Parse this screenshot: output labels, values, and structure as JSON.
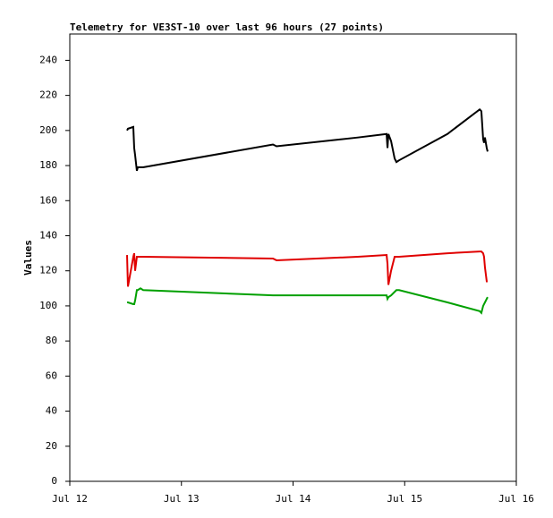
{
  "chart_data": {
    "type": "line",
    "title": "Telemetry for VE3ST-10 over last 96 hours (27 points)",
    "y_label": "Values",
    "x": [
      12.513,
      12.521,
      12.569,
      12.577,
      12.585,
      12.601,
      12.609,
      12.633,
      12.657,
      13.82,
      13.852,
      14.58,
      14.838,
      14.846,
      14.854,
      14.878,
      14.91,
      14.926,
      14.95,
      15.383,
      15.672,
      15.687,
      15.703,
      15.711,
      15.719,
      15.735,
      15.743
    ],
    "series": [
      {
        "color": "#000000",
        "values": [
          200,
          201,
          202,
          190,
          186,
          177,
          179,
          179,
          179,
          192,
          191,
          196,
          198,
          190,
          198,
          194,
          184,
          182,
          183,
          198,
          212,
          211,
          195,
          193,
          196,
          190,
          188
        ]
      },
      {
        "color": "#e00000",
        "values": [
          129,
          111,
          128,
          130,
          120,
          128,
          128,
          128,
          128,
          127,
          126,
          128,
          129,
          124,
          112,
          120,
          128,
          128,
          128,
          130,
          131,
          131,
          130,
          128,
          122,
          114,
          114
        ]
      },
      {
        "color": "#00a000",
        "values": [
          102,
          102,
          101,
          101,
          103,
          109,
          109,
          110,
          109,
          106,
          106,
          106,
          106,
          104,
          105,
          106,
          108,
          109,
          109,
          102,
          97,
          96,
          100,
          101,
          102,
          104,
          105
        ]
      }
    ],
    "xlim": [
      12,
      16
    ],
    "xticks": [
      {
        "value": 12,
        "label": "Jul 12"
      },
      {
        "value": 13,
        "label": "Jul 13"
      },
      {
        "value": 14,
        "label": "Jul 14"
      },
      {
        "value": 15,
        "label": "Jul 15"
      },
      {
        "value": 16,
        "label": "Jul 16"
      }
    ],
    "ylim": [
      0,
      255
    ],
    "yticks": [
      0,
      20,
      40,
      60,
      80,
      100,
      120,
      140,
      160,
      180,
      200,
      220,
      240
    ]
  }
}
